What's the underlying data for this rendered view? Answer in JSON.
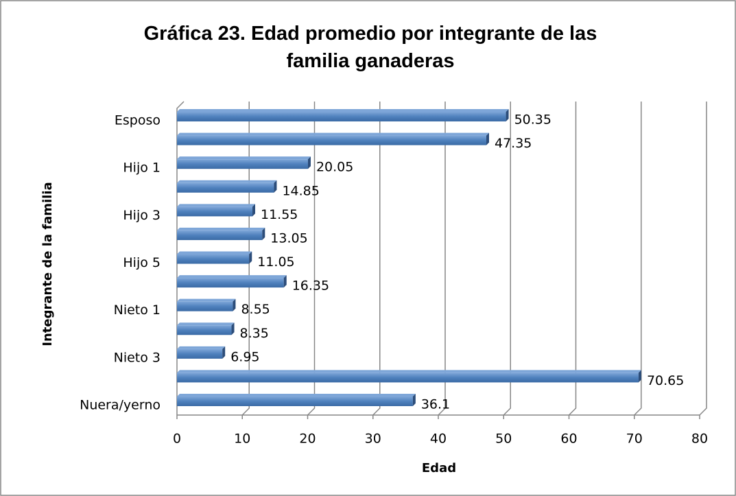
{
  "chart_data": {
    "type": "bar",
    "orientation": "horizontal",
    "title": "Gráfica 23. Edad promedio por integrante de las familia ganaderas",
    "x_label": "Edad",
    "y_label": "Integrante de la familia",
    "categories": [
      "Esposo",
      null,
      "Hijo 1",
      null,
      "Hijo 3",
      null,
      "Hijo 5",
      null,
      "Nieto 1",
      null,
      "Nieto 3",
      null,
      "Nuera/yerno"
    ],
    "values": [
      50.35,
      47.35,
      20.05,
      14.85,
      11.55,
      13.05,
      11.05,
      16.35,
      8.55,
      8.35,
      6.95,
      70.65,
      36.1
    ],
    "color": "#4f81bd",
    "xlim": [
      0,
      80
    ],
    "xticks": [
      0,
      10,
      20,
      30,
      40,
      50,
      60,
      70,
      80
    ],
    "grid": true
  }
}
